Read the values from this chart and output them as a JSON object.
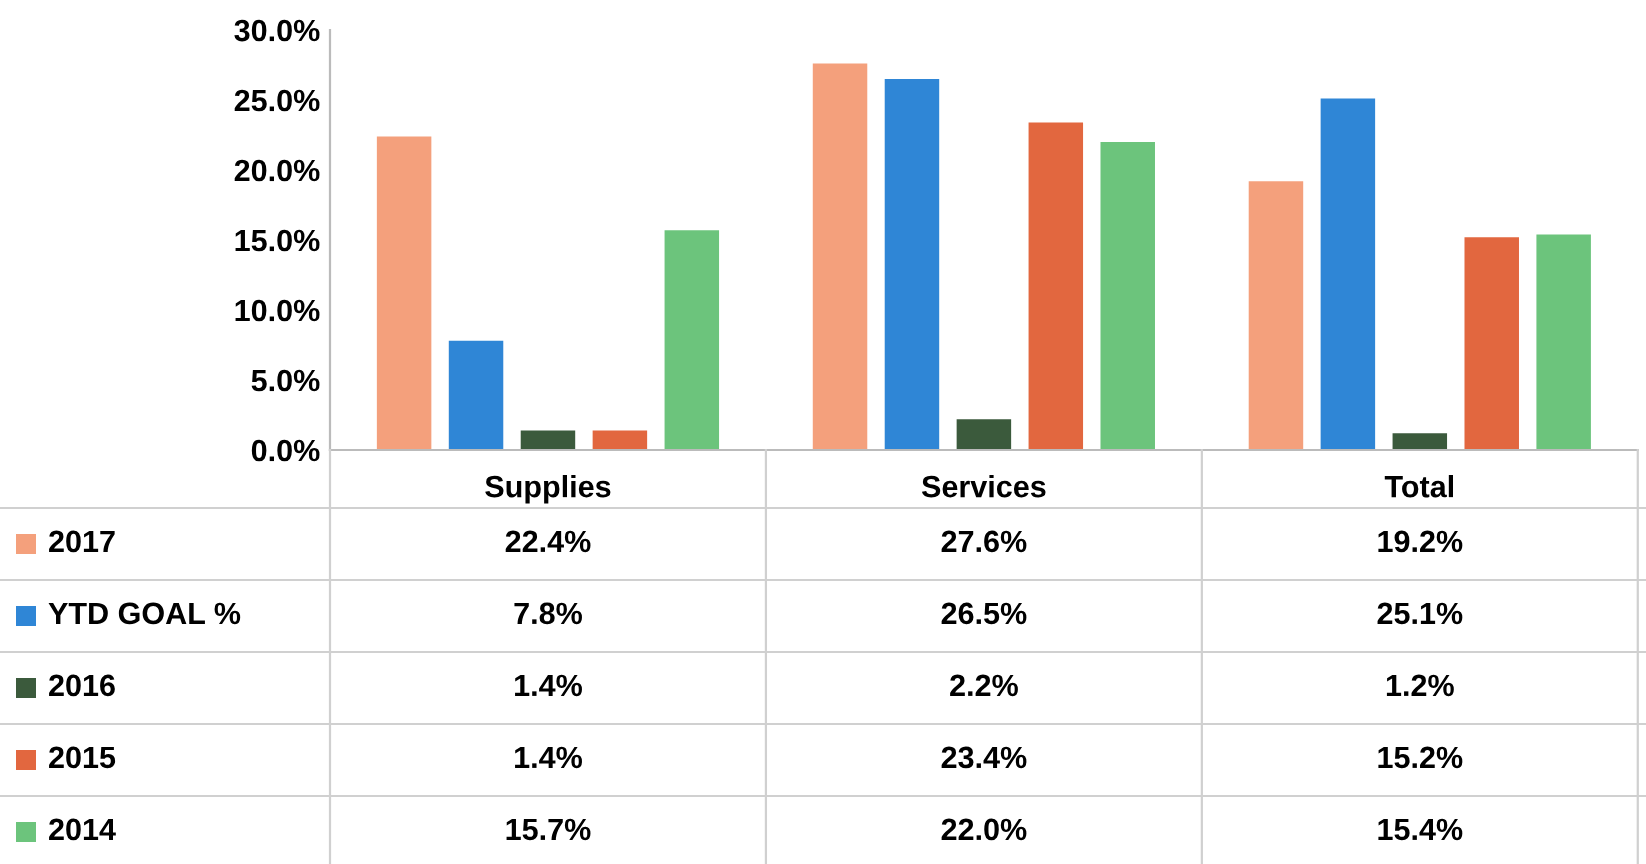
{
  "chart_data": {
    "type": "bar",
    "categories": [
      "Supplies",
      "Services",
      "Total"
    ],
    "series": [
      {
        "name": "2017",
        "color": "#f4a07c",
        "values": [
          22.4,
          27.6,
          19.2
        ],
        "value_labels": [
          "22.4%",
          "27.6%",
          "19.2%"
        ]
      },
      {
        "name": "YTD GOAL %",
        "color": "#2f86d6",
        "values": [
          7.8,
          26.5,
          25.1
        ],
        "value_labels": [
          "7.8%",
          "26.5%",
          "25.1%"
        ]
      },
      {
        "name": "2016",
        "color": "#3b5a3c",
        "values": [
          1.4,
          2.2,
          1.2
        ],
        "value_labels": [
          "1.4%",
          "2.2%",
          "1.2%"
        ]
      },
      {
        "name": "2015",
        "color": "#e2673f",
        "values": [
          1.4,
          23.4,
          15.2
        ],
        "value_labels": [
          "1.4%",
          "23.4%",
          "15.2%"
        ]
      },
      {
        "name": "2014",
        "color": "#6cc47c",
        "values": [
          15.7,
          22.0,
          15.4
        ],
        "value_labels": [
          "15.7%",
          "22.0%",
          "15.4%"
        ]
      }
    ],
    "ylim": [
      0,
      30
    ],
    "yticks": [
      {
        "value": 0,
        "label": "0.0%"
      },
      {
        "value": 5,
        "label": "5.0%"
      },
      {
        "value": 10,
        "label": "10.0%"
      },
      {
        "value": 15,
        "label": "15.0%"
      },
      {
        "value": 20,
        "label": "20.0%"
      },
      {
        "value": 25,
        "label": "25.0%"
      },
      {
        "value": 30,
        "label": "30.0%"
      }
    ],
    "legend": "bottom left"
  }
}
